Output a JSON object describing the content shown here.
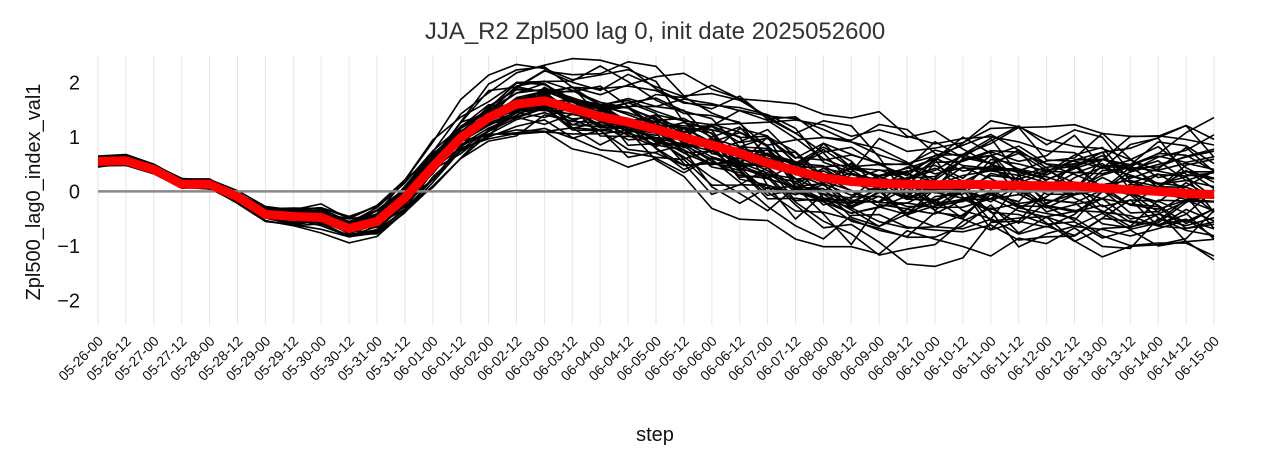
{
  "chart_data": {
    "type": "line",
    "title": "JJA_R2 Zpl500 lag 0, init date 2025052600",
    "xlabel": "step",
    "ylabel": "Zpl500_lag0_index_val1",
    "x": [
      "05-26-00",
      "05-26-12",
      "05-27-00",
      "05-27-12",
      "05-28-00",
      "05-28-12",
      "05-29-00",
      "05-29-12",
      "05-30-00",
      "05-30-12",
      "05-31-00",
      "05-31-12",
      "06-01-00",
      "06-01-12",
      "06-02-00",
      "06-02-12",
      "06-03-00",
      "06-03-12",
      "06-04-00",
      "06-04-12",
      "06-05-00",
      "06-05-12",
      "06-06-00",
      "06-06-12",
      "06-07-00",
      "06-07-12",
      "06-08-00",
      "06-08-12",
      "06-09-00",
      "06-09-12",
      "06-10-00",
      "06-10-12",
      "06-11-00",
      "06-11-12",
      "06-12-00",
      "06-12-12",
      "06-13-00",
      "06-13-12",
      "06-14-00",
      "06-14-12",
      "06-15-00"
    ],
    "ylim": [
      -2.45,
      2.5
    ],
    "yticks": [
      -2,
      -1,
      0,
      1,
      2
    ],
    "grid": "vertical",
    "series": [
      {
        "role": "ensemble-mean",
        "color": "#ff0000",
        "values": [
          0.55,
          0.56,
          0.4,
          0.13,
          0.13,
          -0.1,
          -0.42,
          -0.46,
          -0.48,
          -0.68,
          -0.55,
          -0.12,
          0.45,
          0.98,
          1.35,
          1.6,
          1.66,
          1.52,
          1.37,
          1.27,
          1.14,
          0.99,
          0.85,
          0.7,
          0.52,
          0.38,
          0.25,
          0.18,
          0.15,
          0.13,
          0.12,
          0.13,
          0.12,
          0.11,
          0.1,
          0.1,
          0.06,
          0.03,
          0.0,
          -0.04,
          -0.06
        ]
      }
    ],
    "members": {
      "count": 50,
      "color": "#000000",
      "spread": [
        0.1,
        0.1,
        0.1,
        0.1,
        0.1,
        0.12,
        0.15,
        0.18,
        0.2,
        0.2,
        0.28,
        0.35,
        0.4,
        0.45,
        0.5,
        0.55,
        0.6,
        0.65,
        0.7,
        0.75,
        0.8,
        0.85,
        0.9,
        0.95,
        0.98,
        1.0,
        1.02,
        1.03,
        1.04,
        1.05,
        1.05,
        1.05,
        1.05,
        1.05,
        1.05,
        1.05,
        1.05,
        1.05,
        1.05,
        1.05,
        1.05
      ]
    },
    "zero_line_color": "#888888"
  }
}
